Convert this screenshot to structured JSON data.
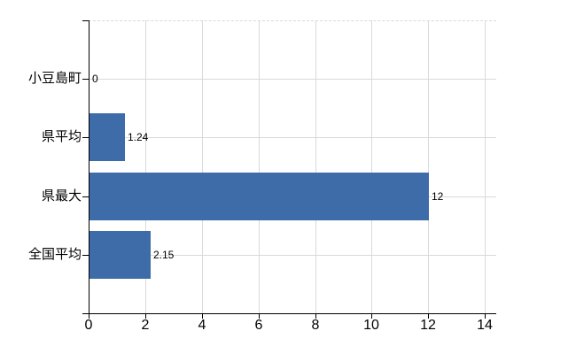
{
  "chart_data": {
    "type": "bar",
    "orientation": "horizontal",
    "title": "",
    "xlabel": "",
    "ylabel": "",
    "categories": [
      "小豆島町",
      "県平均",
      "県最大",
      "全国平均"
    ],
    "values": [
      0,
      1.24,
      12,
      2.15
    ],
    "value_labels": [
      "0",
      "1.24",
      "12",
      "2.15"
    ],
    "x_ticks": [
      0,
      2,
      4,
      6,
      8,
      10,
      12,
      14
    ],
    "x_tick_labels": [
      "0",
      "2",
      "4",
      "6",
      "8",
      "10",
      "12",
      "14"
    ],
    "xlim": [
      0,
      14.4
    ],
    "grid": true,
    "legend": false,
    "colors": {
      "bar": "#3e6ca8",
      "gridline": "#d9d9d9",
      "axis": "#000000",
      "text": "#000000",
      "background": "#ffffff"
    }
  }
}
